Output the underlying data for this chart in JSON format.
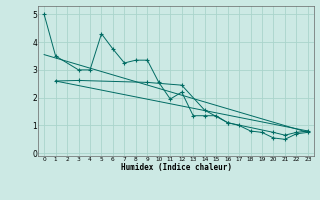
{
  "xlabel": "Humidex (Indice chaleur)",
  "bg_color": "#cce9e4",
  "grid_color": "#aad4cc",
  "line_color": "#006b63",
  "xlim": [
    -0.5,
    23.5
  ],
  "ylim": [
    -0.1,
    5.3
  ],
  "xticks": [
    0,
    1,
    2,
    3,
    4,
    5,
    6,
    7,
    8,
    9,
    10,
    11,
    12,
    13,
    14,
    15,
    16,
    17,
    18,
    19,
    20,
    21,
    22,
    23
  ],
  "yticks": [
    0,
    1,
    2,
    3,
    4,
    5
  ],
  "series1_x": [
    0,
    1,
    3,
    4,
    5,
    6,
    7,
    8,
    9,
    10,
    11,
    12,
    13,
    14,
    15,
    16,
    17,
    18,
    19,
    20,
    21,
    22,
    23
  ],
  "series1_y": [
    5.0,
    3.5,
    3.0,
    3.0,
    4.3,
    3.75,
    3.25,
    3.35,
    3.35,
    2.55,
    1.95,
    2.2,
    1.35,
    1.35,
    1.35,
    1.1,
    1.0,
    0.8,
    0.75,
    0.55,
    0.5,
    0.7,
    0.75
  ],
  "series2_x": [
    1,
    3,
    9,
    12,
    14,
    16,
    20,
    21,
    22,
    23
  ],
  "series2_y": [
    2.6,
    2.62,
    2.55,
    2.45,
    1.55,
    1.1,
    0.75,
    0.65,
    0.75,
    0.8
  ],
  "trend1_x": [
    0,
    23
  ],
  "trend1_y": [
    3.55,
    0.75
  ],
  "trend2_x": [
    1,
    23
  ],
  "trend2_y": [
    2.6,
    0.8
  ]
}
